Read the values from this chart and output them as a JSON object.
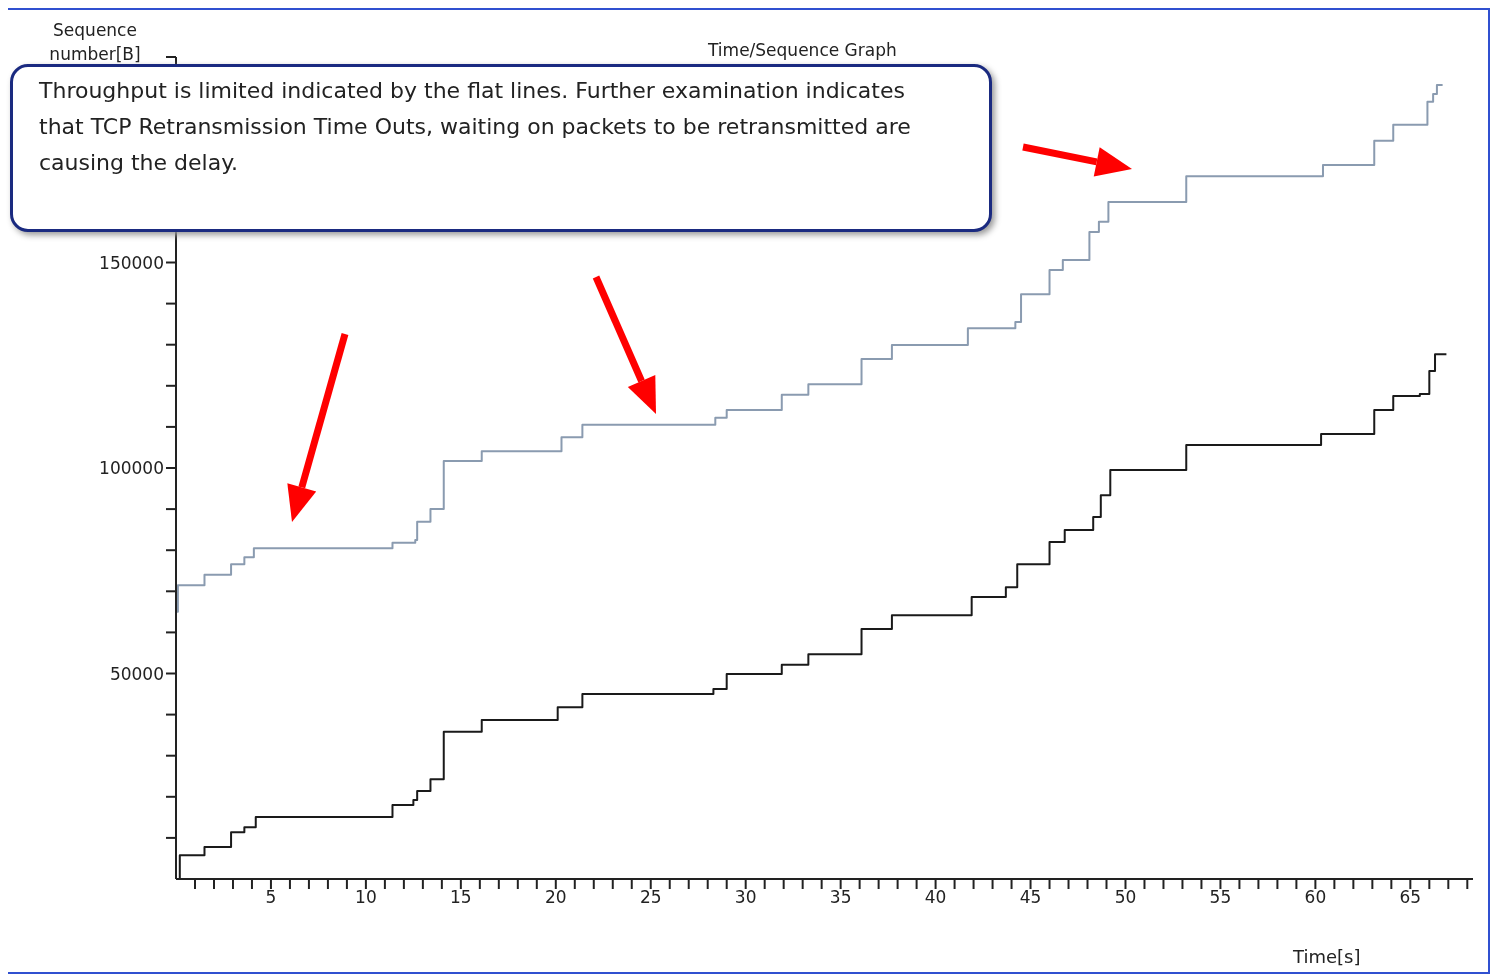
{
  "chart_data": {
    "type": "step",
    "title": "Time/Sequence Graph",
    "xlabel": "Time[s]",
    "ylabel": "Sequence number[B]",
    "annotations": [
      "Throughput is limited indicated by the flat lines. Further examination indicates that TCP Retransmission Time Outs, waiting on packets to be retransmitted are causing the delay."
    ],
    "xlim": [
      0,
      68.3
    ],
    "ylim": [
      0,
      200000
    ],
    "xticks": [
      {
        "value": 1,
        "label": null
      },
      {
        "value": 2,
        "label": null
      },
      {
        "value": 3,
        "label": null
      },
      {
        "value": 4,
        "label": null
      },
      5,
      {
        "value": 6,
        "label": null
      },
      {
        "value": 7,
        "label": null
      },
      {
        "value": 8,
        "label": null
      },
      {
        "value": 9,
        "label": null
      },
      10,
      {
        "value": 11,
        "label": null
      },
      {
        "value": 12,
        "label": null
      },
      {
        "value": 13,
        "label": null
      },
      {
        "value": 14,
        "label": null
      },
      15,
      {
        "value": 16,
        "label": null
      },
      {
        "value": 17,
        "label": null
      },
      {
        "value": 18,
        "label": null
      },
      {
        "value": 19,
        "label": null
      },
      20,
      {
        "value": 21,
        "label": null
      },
      {
        "value": 22,
        "label": null
      },
      {
        "value": 23,
        "label": null
      },
      {
        "value": 24,
        "label": null
      },
      25,
      {
        "value": 26,
        "label": null
      },
      {
        "value": 27,
        "label": null
      },
      {
        "value": 28,
        "label": null
      },
      {
        "value": 29,
        "label": null
      },
      30,
      {
        "value": 31,
        "label": null
      },
      {
        "value": 32,
        "label": null
      },
      {
        "value": 33,
        "label": null
      },
      {
        "value": 34,
        "label": null
      },
      35,
      {
        "value": 36,
        "label": null
      },
      {
        "value": 37,
        "label": null
      },
      {
        "value": 38,
        "label": null
      },
      {
        "value": 39,
        "label": null
      },
      40,
      {
        "value": 41,
        "label": null
      },
      {
        "value": 42,
        "label": null
      },
      {
        "value": 43,
        "label": null
      },
      {
        "value": 44,
        "label": null
      },
      45,
      {
        "value": 46,
        "label": null
      },
      {
        "value": 47,
        "label": null
      },
      {
        "value": 48,
        "label": null
      },
      {
        "value": 49,
        "label": null
      },
      50,
      {
        "value": 51,
        "label": null
      },
      {
        "value": 52,
        "label": null
      },
      {
        "value": 53,
        "label": null
      },
      {
        "value": 54,
        "label": null
      },
      55,
      {
        "value": 56,
        "label": null
      },
      {
        "value": 57,
        "label": null
      },
      {
        "value": 58,
        "label": null
      },
      {
        "value": 59,
        "label": null
      },
      60,
      {
        "value": 61,
        "label": null
      },
      {
        "value": 62,
        "label": null
      },
      {
        "value": 63,
        "label": null
      },
      {
        "value": 64,
        "label": null
      },
      65,
      {
        "value": 66,
        "label": null
      },
      {
        "value": 67,
        "label": null
      },
      {
        "value": 68,
        "label": null
      }
    ],
    "yticks": [
      {
        "value": 10000,
        "label": null
      },
      {
        "value": 20000,
        "label": null
      },
      {
        "value": 30000,
        "label": null
      },
      {
        "value": 40000,
        "label": null
      },
      50000,
      {
        "value": 60000,
        "label": null
      },
      {
        "value": 70000,
        "label": null
      },
      {
        "value": 80000,
        "label": null
      },
      {
        "value": 90000,
        "label": null
      },
      100000,
      {
        "value": 110000,
        "label": null
      },
      {
        "value": 120000,
        "label": null
      },
      {
        "value": 130000,
        "label": null
      },
      {
        "value": 140000,
        "label": null
      },
      150000,
      {
        "value": 160000,
        "label": null
      },
      {
        "value": 170000,
        "label": null
      },
      {
        "value": 180000,
        "label": null
      },
      {
        "value": 190000,
        "label": null
      },
      {
        "value": 200000,
        "label": null
      }
    ],
    "series": [
      {
        "color": "#8a9bb0",
        "x": [
          0,
          0.1,
          1.5,
          2.9,
          3.6,
          4.1,
          11.4,
          12.6,
          12.7,
          13.4,
          14.1,
          16.1,
          20.3,
          21.4,
          28.4,
          29.0,
          31.9,
          33.3,
          36.1,
          37.7,
          41.7,
          44.2,
          44.5,
          46.0,
          46.7,
          48.1,
          48.6,
          49.1,
          53.2,
          60.4,
          63.1,
          64.1,
          65.9,
          66.2,
          66.4,
          66.7
        ],
        "values": [
          65000,
          71500,
          74000,
          76600,
          78300,
          80500,
          81800,
          82500,
          86900,
          90000,
          101700,
          104100,
          107500,
          110500,
          112200,
          114100,
          117800,
          120400,
          126500,
          129900,
          134000,
          135500,
          142300,
          148200,
          150600,
          157400,
          159900,
          164700,
          171000,
          173700,
          179600,
          183500,
          189100,
          191000,
          193200,
          193200
        ]
      },
      {
        "color": "#1a1a1a",
        "x": [
          0,
          0.2,
          1.5,
          2.9,
          3.6,
          4.2,
          11.4,
          12.5,
          12.7,
          13.4,
          14.1,
          16.1,
          20.1,
          21.4,
          28.3,
          29.0,
          31.9,
          33.3,
          36.1,
          37.7,
          41.9,
          43.7,
          44.3,
          46.0,
          46.8,
          48.3,
          48.7,
          49.2,
          53.2,
          60.3,
          63.1,
          64.1,
          65.5,
          66.0,
          66.3,
          66.9
        ],
        "values": [
          0,
          5800,
          7800,
          11400,
          12600,
          15100,
          18000,
          19200,
          21400,
          24300,
          35800,
          38700,
          41800,
          45000,
          46200,
          49900,
          52100,
          54700,
          60800,
          64200,
          68600,
          71000,
          76600,
          82000,
          84900,
          88100,
          93400,
          99500,
          105600,
          108300,
          114100,
          117500,
          118000,
          123600,
          127700,
          127700
        ]
      }
    ]
  }
}
